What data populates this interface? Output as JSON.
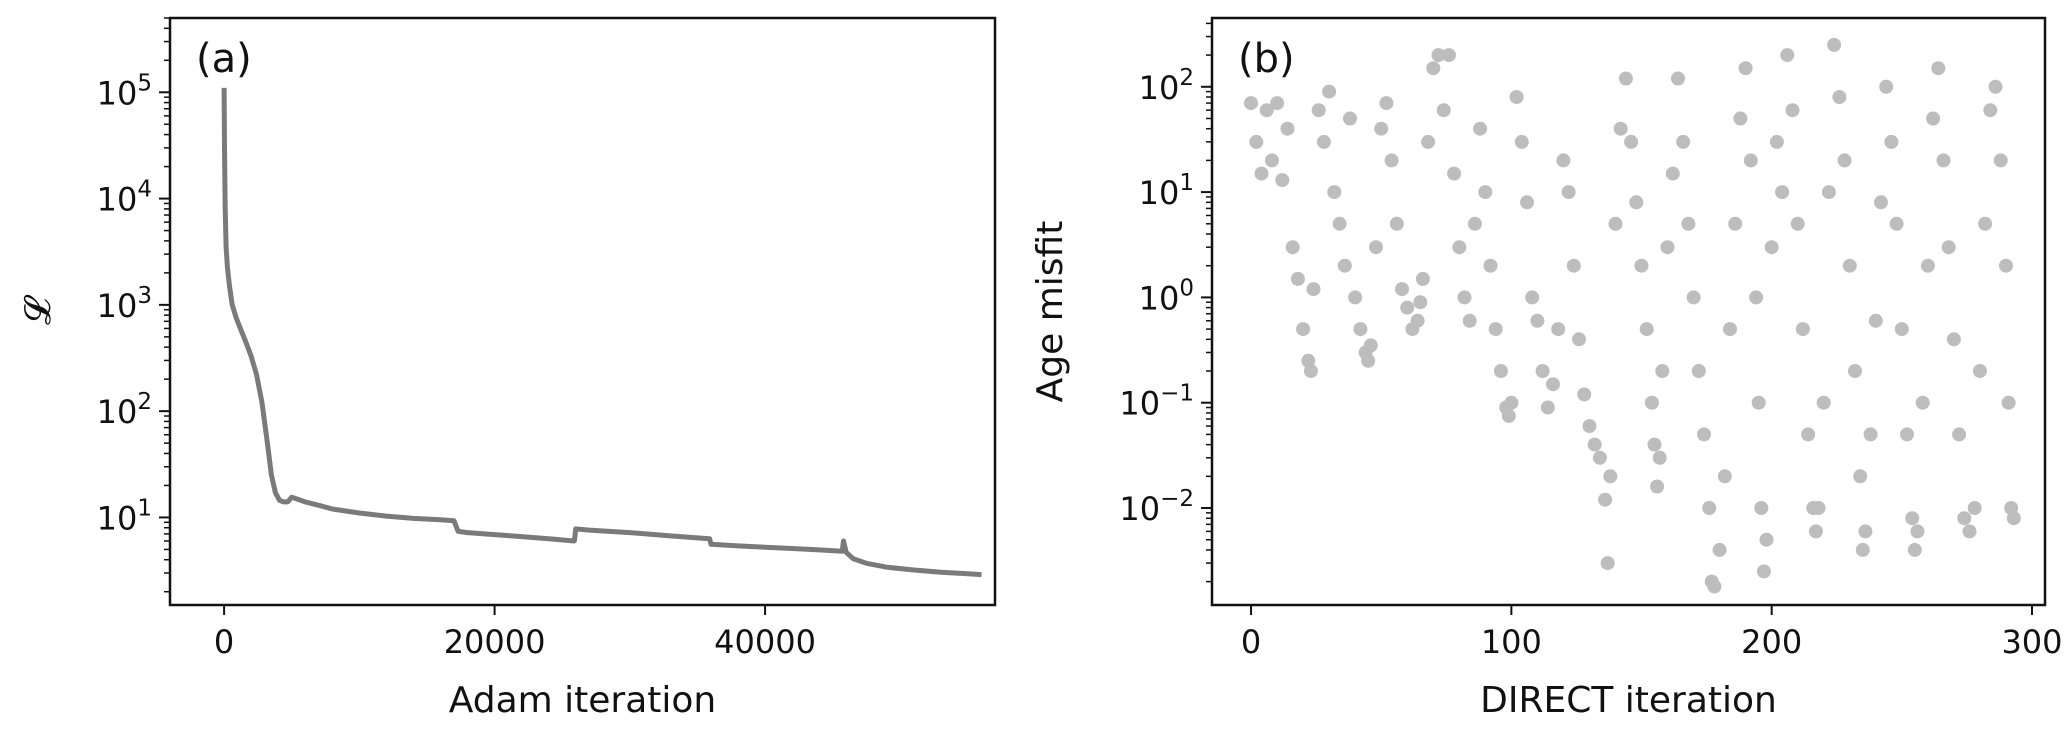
{
  "chart_data": [
    {
      "type": "line",
      "panel_label": "(a)",
      "xlabel": "Adam iteration",
      "ylabel": "𝓛",
      "yscale": "log",
      "xlim": [
        -4000,
        57000
      ],
      "ylim": [
        1.5,
        500000
      ],
      "x_ticks": [
        {
          "value": 0,
          "label": "0"
        },
        {
          "value": 20000,
          "label": "20000"
        },
        {
          "value": 40000,
          "label": "40000"
        }
      ],
      "y_ticks": [
        {
          "value": 10,
          "base": "10",
          "exp": "1"
        },
        {
          "value": 100,
          "base": "10",
          "exp": "2"
        },
        {
          "value": 1000,
          "base": "10",
          "exp": "3"
        },
        {
          "value": 10000,
          "base": "10",
          "exp": "4"
        },
        {
          "value": 100000,
          "base": "10",
          "exp": "5"
        }
      ],
      "grid": false,
      "series": [
        {
          "color": "#7a7a7a",
          "x": [
            0,
            30,
            80,
            150,
            250,
            400,
            600,
            900,
            1200,
            1600,
            2000,
            2400,
            2800,
            3200,
            3500,
            3800,
            4100,
            4400,
            4700,
            5000,
            6000,
            7000,
            8000,
            10000,
            12000,
            14000,
            16000,
            17000,
            17300,
            18000,
            20000,
            22000,
            24000,
            25900,
            26000,
            27000,
            30000,
            33000,
            35900,
            36000,
            38000,
            40000,
            42000,
            44000,
            45700,
            45800,
            46000,
            46500,
            47500,
            49000,
            51000,
            53000,
            55000,
            56000
          ],
          "y": [
            110000,
            30000,
            8000,
            3500,
            2200,
            1500,
            1000,
            750,
            600,
            450,
            330,
            220,
            120,
            50,
            25,
            17,
            14.5,
            14,
            14,
            15.5,
            14,
            13,
            12,
            11,
            10.3,
            9.8,
            9.5,
            9.3,
            7.4,
            7.2,
            6.9,
            6.6,
            6.3,
            6.0,
            7.8,
            7.6,
            7.2,
            6.7,
            6.3,
            5.6,
            5.4,
            5.25,
            5.1,
            4.95,
            4.8,
            6.0,
            4.7,
            4.1,
            3.7,
            3.4,
            3.2,
            3.05,
            2.95,
            2.9
          ]
        }
      ]
    },
    {
      "type": "scatter",
      "panel_label": "(b)",
      "xlabel": "DIRECT iteration",
      "ylabel": "Age misfit",
      "yscale": "log",
      "xlim": [
        -15,
        305
      ],
      "ylim": [
        0.0012,
        450
      ],
      "x_ticks": [
        {
          "value": 0,
          "label": "0"
        },
        {
          "value": 100,
          "label": "100"
        },
        {
          "value": 200,
          "label": "200"
        },
        {
          "value": 300,
          "label": "300"
        }
      ],
      "y_ticks": [
        {
          "value": 0.01,
          "base": "10",
          "exp": "−2"
        },
        {
          "value": 0.1,
          "base": "10",
          "exp": "−1"
        },
        {
          "value": 1,
          "base": "10",
          "exp": "0"
        },
        {
          "value": 10,
          "base": "10",
          "exp": "1"
        },
        {
          "value": 100,
          "base": "10",
          "exp": "2"
        }
      ],
      "grid": false,
      "marker_color": "#bdbdbd",
      "points": [
        [
          0,
          70
        ],
        [
          2,
          30
        ],
        [
          4,
          15
        ],
        [
          6,
          60
        ],
        [
          8,
          20
        ],
        [
          10,
          70
        ],
        [
          12,
          13
        ],
        [
          14,
          40
        ],
        [
          16,
          3
        ],
        [
          18,
          1.5
        ],
        [
          20,
          0.5
        ],
        [
          22,
          0.25
        ],
        [
          23,
          0.2
        ],
        [
          24,
          1.2
        ],
        [
          26,
          60
        ],
        [
          28,
          30
        ],
        [
          30,
          90
        ],
        [
          32,
          10
        ],
        [
          34,
          5
        ],
        [
          36,
          2
        ],
        [
          38,
          50
        ],
        [
          40,
          1
        ],
        [
          42,
          0.5
        ],
        [
          44,
          0.3
        ],
        [
          45,
          0.25
        ],
        [
          46,
          0.35
        ],
        [
          48,
          3
        ],
        [
          50,
          40
        ],
        [
          52,
          70
        ],
        [
          54,
          20
        ],
        [
          56,
          5
        ],
        [
          58,
          1.2
        ],
        [
          60,
          0.8
        ],
        [
          62,
          0.5
        ],
        [
          64,
          0.6
        ],
        [
          65,
          0.9
        ],
        [
          66,
          1.5
        ],
        [
          68,
          30
        ],
        [
          70,
          150
        ],
        [
          72,
          200
        ],
        [
          74,
          60
        ],
        [
          76,
          200
        ],
        [
          78,
          15
        ],
        [
          80,
          3
        ],
        [
          82,
          1
        ],
        [
          84,
          0.6
        ],
        [
          86,
          5
        ],
        [
          88,
          40
        ],
        [
          90,
          10
        ],
        [
          92,
          2
        ],
        [
          94,
          0.5
        ],
        [
          96,
          0.2
        ],
        [
          98,
          0.09
        ],
        [
          99,
          0.075
        ],
        [
          100,
          0.1
        ],
        [
          102,
          80
        ],
        [
          104,
          30
        ],
        [
          106,
          8
        ],
        [
          108,
          1
        ],
        [
          110,
          0.6
        ],
        [
          112,
          0.2
        ],
        [
          114,
          0.09
        ],
        [
          116,
          0.15
        ],
        [
          118,
          0.5
        ],
        [
          120,
          20
        ],
        [
          122,
          10
        ],
        [
          124,
          2
        ],
        [
          126,
          0.4
        ],
        [
          128,
          0.12
        ],
        [
          130,
          0.06
        ],
        [
          132,
          0.04
        ],
        [
          134,
          0.03
        ],
        [
          136,
          0.012
        ],
        [
          137,
          0.003
        ],
        [
          138,
          0.02
        ],
        [
          140,
          5
        ],
        [
          142,
          40
        ],
        [
          144,
          120
        ],
        [
          146,
          30
        ],
        [
          148,
          8
        ],
        [
          150,
          2
        ],
        [
          152,
          0.5
        ],
        [
          154,
          0.1
        ],
        [
          155,
          0.04
        ],
        [
          156,
          0.016
        ],
        [
          157,
          0.03
        ],
        [
          158,
          0.2
        ],
        [
          160,
          3
        ],
        [
          162,
          15
        ],
        [
          164,
          120
        ],
        [
          166,
          30
        ],
        [
          168,
          5
        ],
        [
          170,
          1
        ],
        [
          172,
          0.2
        ],
        [
          174,
          0.05
        ],
        [
          176,
          0.01
        ],
        [
          177,
          0.002
        ],
        [
          178,
          0.0018
        ],
        [
          180,
          0.004
        ],
        [
          182,
          0.02
        ],
        [
          184,
          0.5
        ],
        [
          186,
          5
        ],
        [
          188,
          50
        ],
        [
          190,
          150
        ],
        [
          192,
          20
        ],
        [
          194,
          1
        ],
        [
          195,
          0.1
        ],
        [
          196,
          0.01
        ],
        [
          197,
          0.0025
        ],
        [
          198,
          0.005
        ],
        [
          200,
          3
        ],
        [
          202,
          30
        ],
        [
          204,
          10
        ],
        [
          206,
          200
        ],
        [
          208,
          60
        ],
        [
          210,
          5
        ],
        [
          212,
          0.5
        ],
        [
          214,
          0.05
        ],
        [
          216,
          0.01
        ],
        [
          217,
          0.006
        ],
        [
          218,
          0.01
        ],
        [
          220,
          0.1
        ],
        [
          222,
          10
        ],
        [
          224,
          250
        ],
        [
          226,
          80
        ],
        [
          228,
          20
        ],
        [
          230,
          2
        ],
        [
          232,
          0.2
        ],
        [
          234,
          0.02
        ],
        [
          235,
          0.004
        ],
        [
          236,
          0.006
        ],
        [
          238,
          0.05
        ],
        [
          240,
          0.6
        ],
        [
          242,
          8
        ],
        [
          244,
          100
        ],
        [
          246,
          30
        ],
        [
          248,
          5
        ],
        [
          250,
          0.5
        ],
        [
          252,
          0.05
        ],
        [
          254,
          0.008
        ],
        [
          255,
          0.004
        ],
        [
          256,
          0.006
        ],
        [
          258,
          0.1
        ],
        [
          260,
          2
        ],
        [
          262,
          50
        ],
        [
          264,
          150
        ],
        [
          266,
          20
        ],
        [
          268,
          3
        ],
        [
          270,
          0.4
        ],
        [
          272,
          0.05
        ],
        [
          274,
          0.008
        ],
        [
          276,
          0.006
        ],
        [
          278,
          0.01
        ],
        [
          280,
          0.2
        ],
        [
          282,
          5
        ],
        [
          284,
          60
        ],
        [
          286,
          100
        ],
        [
          288,
          20
        ],
        [
          290,
          2
        ],
        [
          291,
          0.1
        ],
        [
          292,
          0.01
        ],
        [
          293,
          0.008
        ]
      ]
    }
  ]
}
